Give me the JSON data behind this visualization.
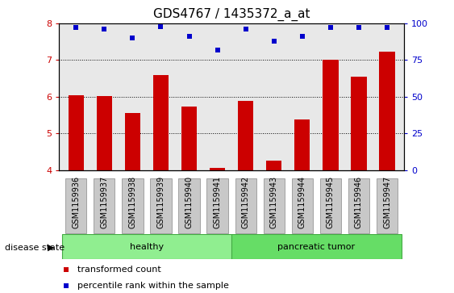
{
  "title": "GDS4767 / 1435372_a_at",
  "samples": [
    "GSM1159936",
    "GSM1159937",
    "GSM1159938",
    "GSM1159939",
    "GSM1159940",
    "GSM1159941",
    "GSM1159942",
    "GSM1159943",
    "GSM1159944",
    "GSM1159945",
    "GSM1159946",
    "GSM1159947"
  ],
  "bar_values": [
    6.05,
    6.01,
    5.55,
    6.6,
    5.72,
    4.05,
    5.88,
    4.25,
    5.38,
    7.0,
    6.55,
    7.22
  ],
  "percentile_values": [
    97,
    96,
    90,
    98,
    91,
    82,
    96,
    88,
    91,
    97,
    97,
    97
  ],
  "bar_color": "#cc0000",
  "dot_color": "#0000cc",
  "ylim_left": [
    4,
    8
  ],
  "ylim_right": [
    0,
    100
  ],
  "yticks_left": [
    4,
    5,
    6,
    7,
    8
  ],
  "yticks_right": [
    0,
    25,
    50,
    75,
    100
  ],
  "groups": [
    {
      "label": "healthy",
      "start": 0,
      "end": 5,
      "color": "#90ee90"
    },
    {
      "label": "pancreatic tumor",
      "start": 6,
      "end": 11,
      "color": "#66dd66"
    }
  ],
  "disease_state_label": "disease state",
  "legend_items": [
    {
      "color": "#cc0000",
      "label": "transformed count"
    },
    {
      "color": "#0000cc",
      "label": "percentile rank within the sample"
    }
  ],
  "bar_width": 0.55,
  "tick_label_fontsize": 7,
  "title_fontsize": 11,
  "axis_color_left": "#cc0000",
  "axis_color_right": "#0000cc",
  "background_color": "#ffffff",
  "plot_bg_color": "#e8e8e8",
  "tickbox_color": "#c8c8c8"
}
